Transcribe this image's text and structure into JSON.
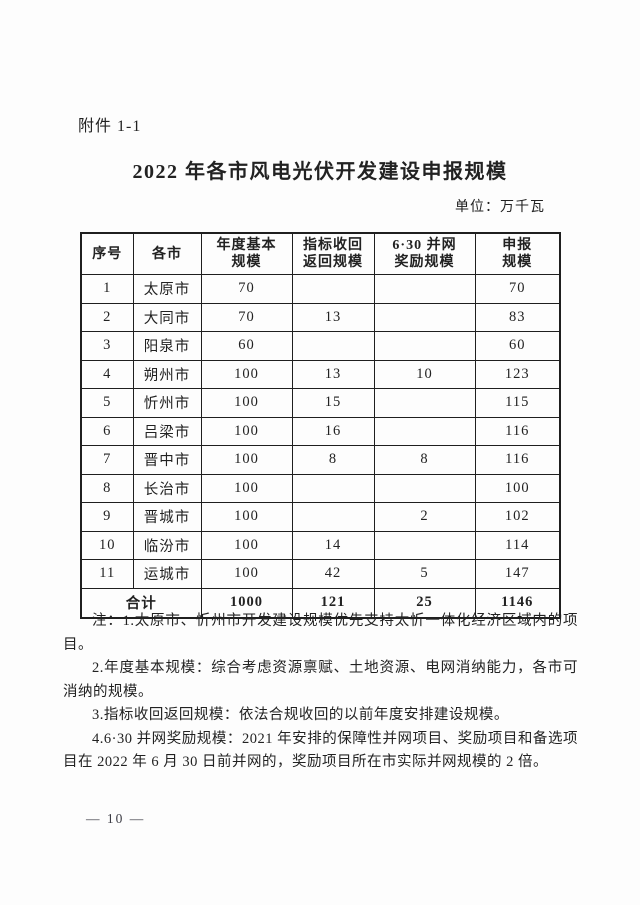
{
  "page": {
    "attachment_label": "附件 1-1",
    "title": "2022 年各市风电光伏开发建设申报规模",
    "unit_label": "单位：万千瓦",
    "footer_page_number": "— 10 —"
  },
  "table": {
    "headers": [
      "序号",
      "各市",
      "年度基本\n规模",
      "指标收回\n返回规模",
      "6·30 并网\n奖励规模",
      "申报\n规模"
    ],
    "rows": [
      [
        "1",
        "太原市",
        "70",
        "",
        "",
        "70"
      ],
      [
        "2",
        "大同市",
        "70",
        "13",
        "",
        "83"
      ],
      [
        "3",
        "阳泉市",
        "60",
        "",
        "",
        "60"
      ],
      [
        "4",
        "朔州市",
        "100",
        "13",
        "10",
        "123"
      ],
      [
        "5",
        "忻州市",
        "100",
        "15",
        "",
        "115"
      ],
      [
        "6",
        "吕梁市",
        "100",
        "16",
        "",
        "116"
      ],
      [
        "7",
        "晋中市",
        "100",
        "8",
        "8",
        "116"
      ],
      [
        "8",
        "长治市",
        "100",
        "",
        "",
        "100"
      ],
      [
        "9",
        "晋城市",
        "100",
        "",
        "2",
        "102"
      ],
      [
        "10",
        "临汾市",
        "100",
        "14",
        "",
        "114"
      ],
      [
        "11",
        "运城市",
        "100",
        "42",
        "5",
        "147"
      ]
    ],
    "total": {
      "label": "合计",
      "values": [
        "1000",
        "121",
        "25",
        "1146"
      ]
    }
  },
  "notes": [
    "注：1.太原市、忻州市开发建设规模优先支持太忻一体化经济区域内的项目。",
    "2.年度基本规模：综合考虑资源禀赋、土地资源、电网消纳能力，各市可消纳的规模。",
    "3.指标收回返回规模：依法合规收回的以前年度安排建设规模。",
    "4.6·30 并网奖励规模：2021 年安排的保障性并网项目、奖励项目和备选项目在 2022 年 6 月 30 日前并网的，奖励项目所在市实际并网规模的 2 倍。"
  ],
  "colors": {
    "paper": "#fdfdfd",
    "ink": "#222222",
    "table_border": "#1f1f1f"
  }
}
